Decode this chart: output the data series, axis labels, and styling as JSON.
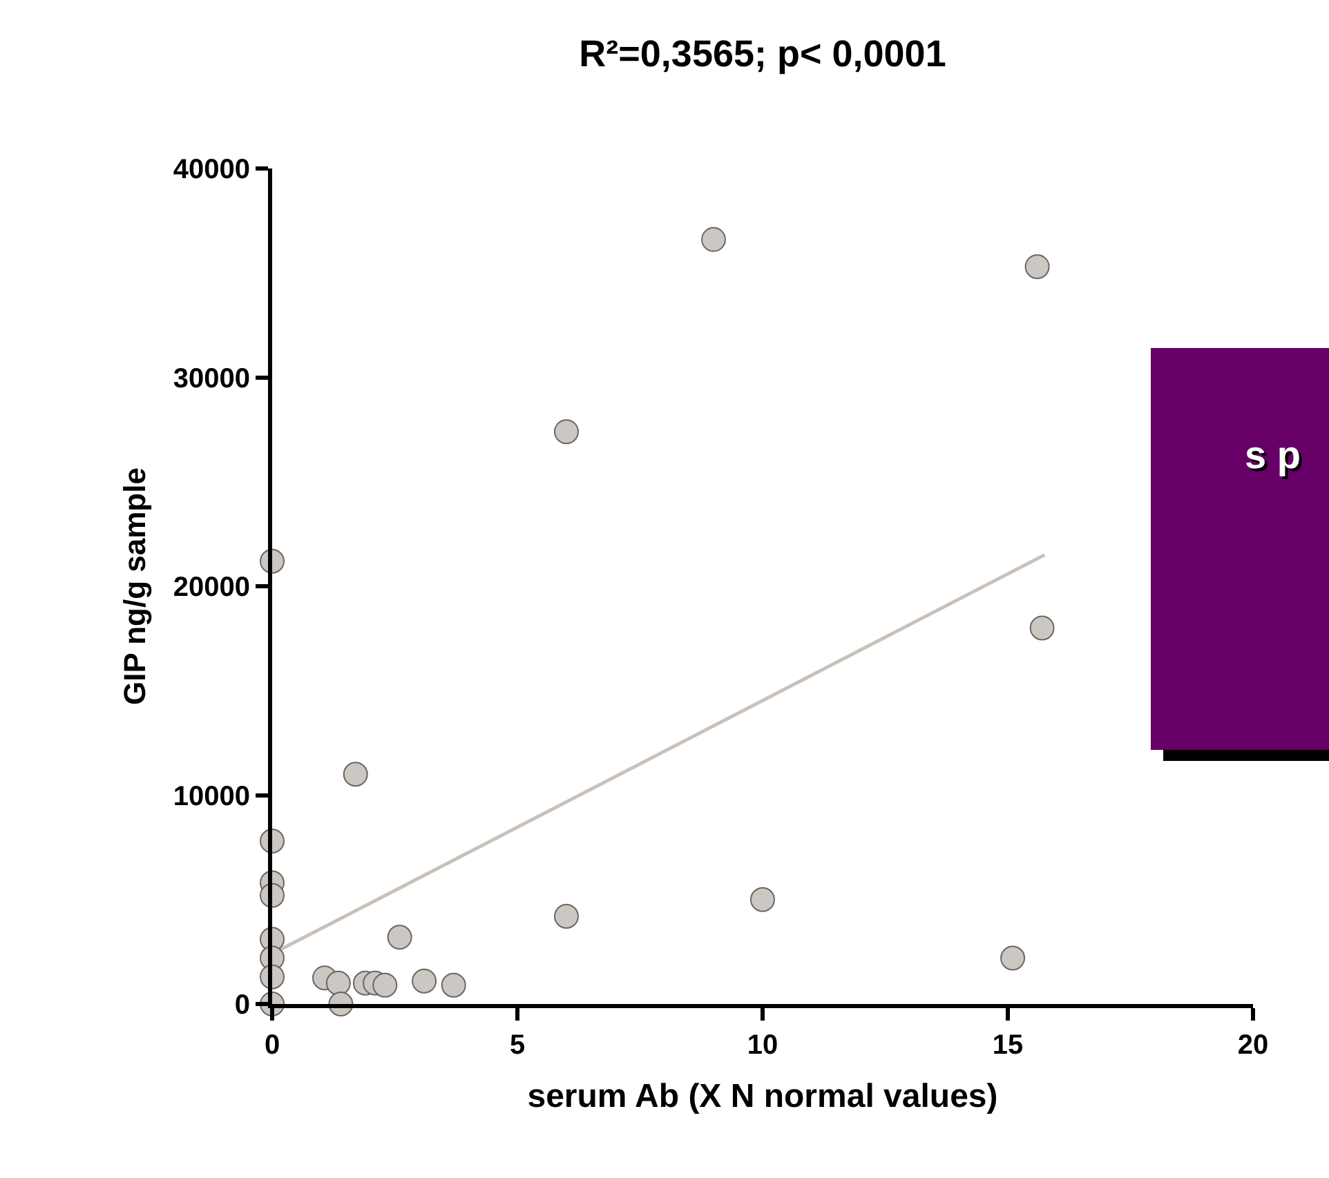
{
  "chart_data": {
    "type": "scatter",
    "title": "R²=0,3565; p< 0,0001",
    "xlabel": "serum Ab (X N normal values)",
    "ylabel": "GIP ng/g sample",
    "series": [
      {
        "color": "#cbc7c3",
        "x": [
          0,
          0,
          0,
          0,
          0,
          0,
          0,
          0,
          1.7,
          1.07,
          1.35,
          1.4,
          1.9,
          2.1,
          2.3,
          2.6,
          3.1,
          3.7,
          6.0,
          6.0,
          9.0,
          10.0,
          15.1,
          15.6,
          15.7
        ],
        "values": [
          21200,
          7800,
          5800,
          5200,
          3100,
          2200,
          1300,
          0,
          11000,
          1250,
          1000,
          0,
          1000,
          1000,
          900,
          3200,
          1100,
          900,
          27400,
          4200,
          36600,
          5000,
          2200,
          35300,
          18000
        ]
      },
      {
        "type": "line",
        "marker": "none",
        "color": "#c9c1b9",
        "x": [
          0,
          15.75
        ],
        "values": [
          2400,
          21500
        ]
      }
    ],
    "xlim": [
      0,
      20
    ],
    "xticks": [
      0,
      5,
      10,
      15,
      20
    ],
    "ylim": [
      0,
      40000
    ],
    "yticks": [
      0,
      10000,
      20000,
      30000,
      40000
    ],
    "marker": "circle",
    "grid": false,
    "annotations": [
      "s p"
    ]
  }
}
